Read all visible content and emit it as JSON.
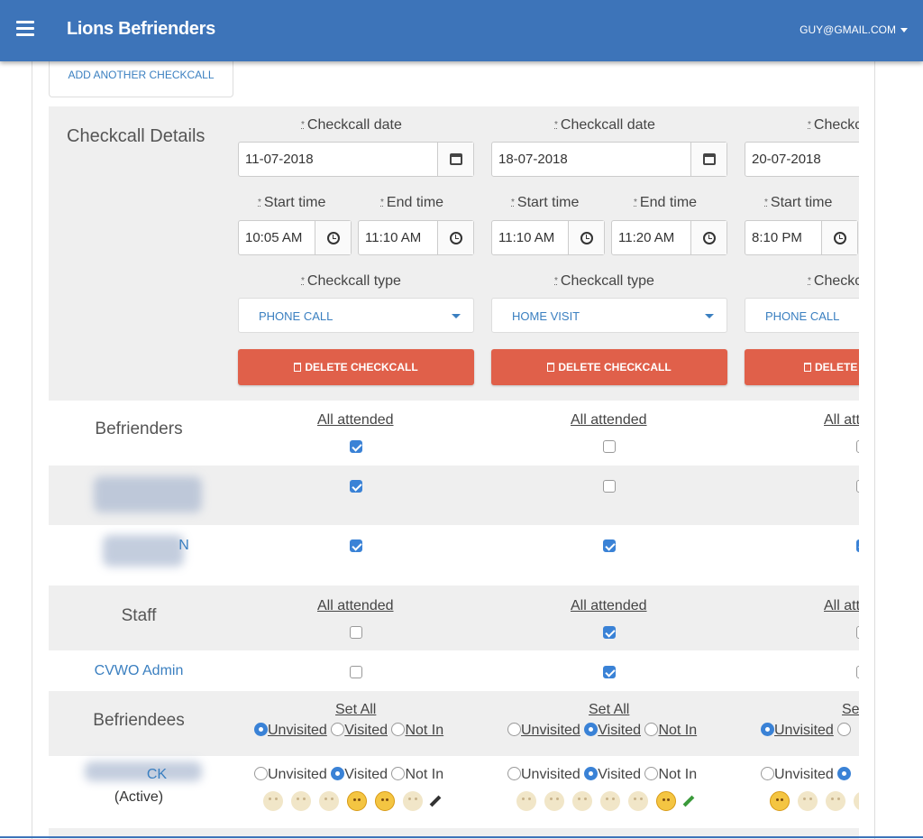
{
  "header": {
    "brand": "Lions Befrienders",
    "user_email": "GUY@GMAIL.COM",
    "color": "#3d74b9"
  },
  "add_button_label": "ADD ANOTHER CHECKCALL",
  "details": {
    "title": "Checkcall Details",
    "date_label": "Checkcall date",
    "start_label": "Start time",
    "end_label": "End time",
    "type_label": "Checkcall type",
    "delete_label": "DELETE CHECKCALL"
  },
  "checkcalls": [
    {
      "date": "11-07-2018",
      "start": "10:05 AM",
      "end": "11:10 AM",
      "type": "PHONE CALL"
    },
    {
      "date": "18-07-2018",
      "start": "11:10 AM",
      "end": "11:20 AM",
      "type": "HOME VISIT"
    },
    {
      "date": "20-07-2018",
      "start": "8:10 PM",
      "end": "",
      "type": "PHONE CALL"
    }
  ],
  "befrienders": {
    "title": "Befrienders",
    "all_label": "All attended",
    "all_checked": [
      true,
      false,
      false
    ],
    "members": [
      {
        "name": "",
        "checks": [
          true,
          false,
          false
        ]
      },
      {
        "name": "N",
        "checks": [
          true,
          true,
          true
        ]
      }
    ]
  },
  "staff": {
    "title": "Staff",
    "all_label": "All attended",
    "all_checked": [
      false,
      true,
      false
    ],
    "members": [
      {
        "name": "CVWO Admin",
        "checks": [
          false,
          true,
          false
        ]
      }
    ]
  },
  "befriendees": {
    "title": "Befriendees",
    "set_all_label": "Set All",
    "options": [
      "Unvisited",
      "Visited",
      "Not In"
    ],
    "set_all_selected": [
      0,
      1,
      0
    ],
    "members": [
      {
        "name": "CK",
        "status": "(Active)",
        "selected": [
          1,
          1,
          1
        ],
        "mood": [
          "scared",
          "happy",
          null
        ]
      }
    ]
  }
}
